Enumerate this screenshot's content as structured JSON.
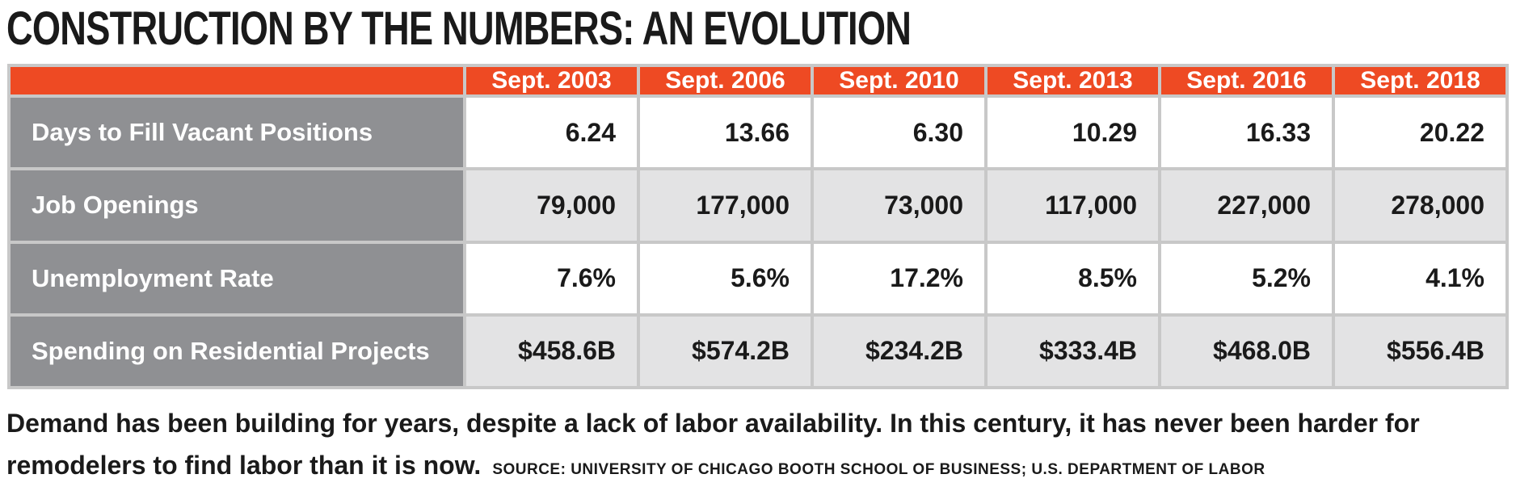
{
  "title": "CONSTRUCTION BY THE NUMBERS: AN EVOLUTION",
  "colors": {
    "header_bg": "#ee4a23",
    "label_bg": "#8f9093",
    "row_alt_bg": "#e3e3e4",
    "grid": "#c8c8c8"
  },
  "chart_data": {
    "type": "table",
    "title": "CONSTRUCTION BY THE NUMBERS: AN EVOLUTION",
    "columns": [
      "Sept. 2003",
      "Sept. 2006",
      "Sept. 2010",
      "Sept. 2013",
      "Sept. 2016",
      "Sept. 2018"
    ],
    "rows": [
      {
        "label": "Days to Fill Vacant Positions",
        "values": [
          "6.24",
          "13.66",
          "6.30",
          "10.29",
          "16.33",
          "20.22"
        ]
      },
      {
        "label": "Job Openings",
        "values": [
          "79,000",
          "177,000",
          "73,000",
          "117,000",
          "227,000",
          "278,000"
        ]
      },
      {
        "label": "Unemployment Rate",
        "values": [
          "7.6%",
          "5.6%",
          "17.2%",
          "8.5%",
          "5.2%",
          "4.1%"
        ]
      },
      {
        "label": "Spending on Residential Projects",
        "values": [
          "$458.6B",
          "$574.2B",
          "$234.2B",
          "$333.4B",
          "$468.0B",
          "$556.4B"
        ]
      }
    ]
  },
  "caption": {
    "text": "Demand has been building for years, despite a lack of labor availability. In this century, it has never been harder for remodelers to find labor than it is now.",
    "source": "SOURCE: UNIVERSITY OF CHICAGO BOOTH SCHOOL OF BUSINESS; U.S. DEPARTMENT OF LABOR"
  }
}
